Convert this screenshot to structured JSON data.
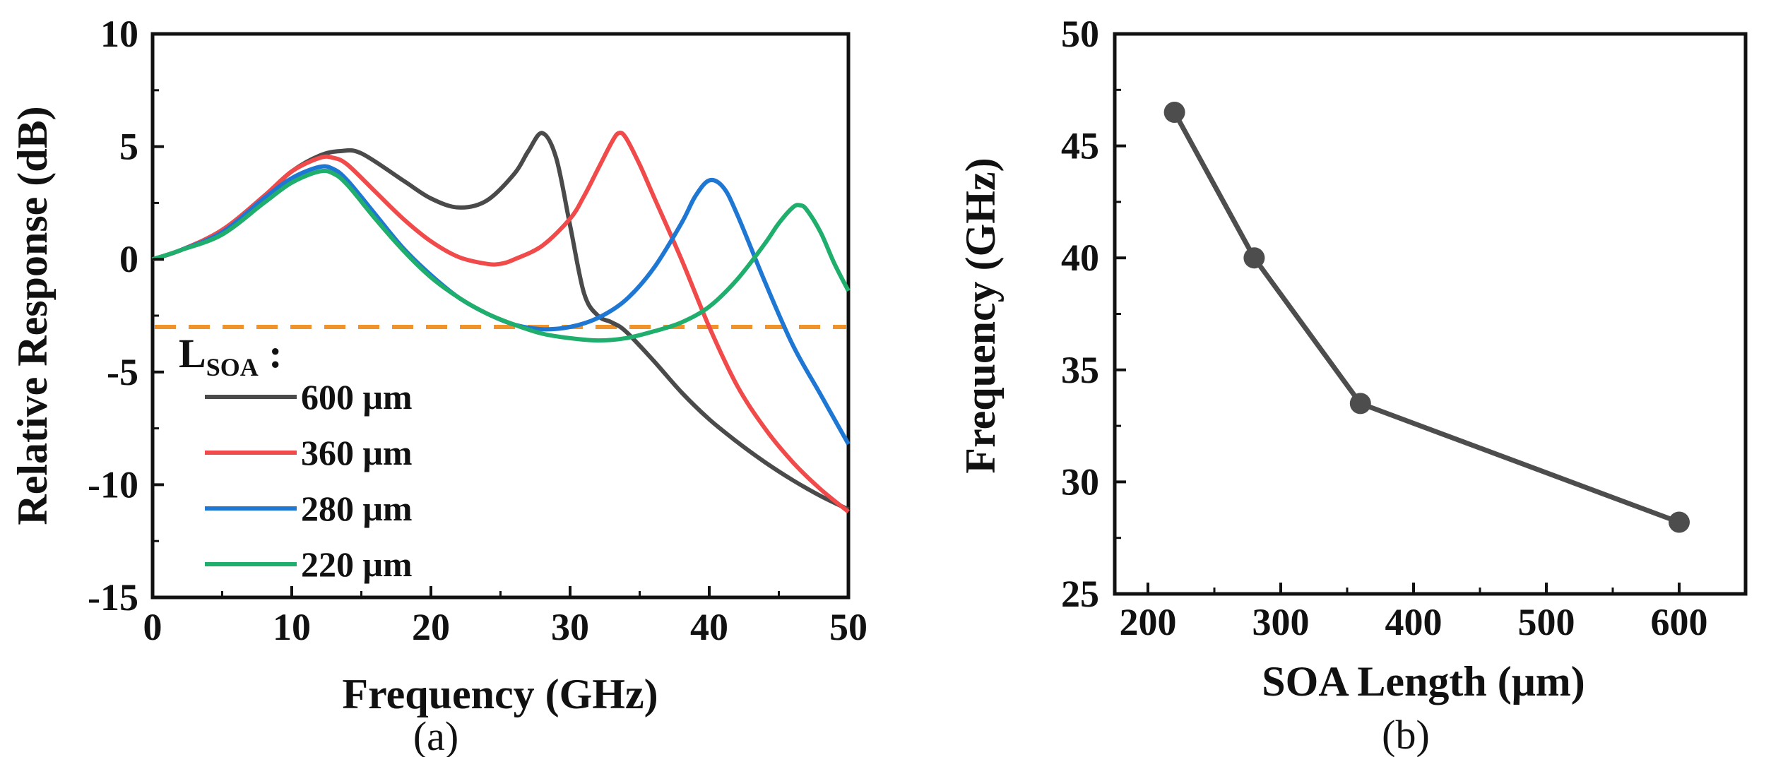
{
  "chart_data": [
    {
      "type": "line",
      "panel_label": "(a)",
      "xlabel": "Frequency (GHz)",
      "ylabel": "Relative Response (dB)",
      "xlim": [
        0,
        50
      ],
      "ylim": [
        -15,
        10
      ],
      "xticks": [
        0,
        10,
        20,
        30,
        40,
        50
      ],
      "yticks": [
        -15,
        -10,
        -5,
        0,
        5,
        10
      ],
      "legend_title_main": "L",
      "legend_title_sub": "SOA",
      "legend_title_suffix": " :",
      "reference_line": {
        "y": -3,
        "color": "#f0932b",
        "style": "dashed"
      },
      "series": [
        {
          "name": "600 μm",
          "color": "#4a4a4a",
          "x": [
            0,
            2,
            5,
            8,
            10,
            12,
            13.5,
            15,
            18,
            20,
            22,
            24,
            26,
            27,
            28,
            29,
            30,
            31,
            32,
            33,
            34,
            36,
            38,
            40,
            42,
            44,
            46,
            48,
            50
          ],
          "y": [
            0,
            0.4,
            1.3,
            2.8,
            3.9,
            4.6,
            4.8,
            4.7,
            3.5,
            2.7,
            2.3,
            2.6,
            3.8,
            4.8,
            5.6,
            4.5,
            1.5,
            -1.5,
            -2.5,
            -2.8,
            -3.2,
            -4.5,
            -5.9,
            -7.1,
            -8.1,
            -9.0,
            -9.8,
            -10.5,
            -11.1
          ]
        },
        {
          "name": "360 μm",
          "color": "#f04a4a",
          "x": [
            0,
            2,
            5,
            8,
            10,
            12,
            13,
            14,
            16,
            18,
            20,
            22,
            24,
            25,
            26,
            28,
            30,
            31,
            32,
            33,
            33.5,
            34,
            35,
            36,
            38,
            40,
            42,
            44,
            46,
            48,
            50
          ],
          "y": [
            0,
            0.4,
            1.3,
            2.8,
            3.9,
            4.5,
            4.5,
            4.2,
            3.0,
            1.8,
            0.8,
            0.1,
            -0.2,
            -0.2,
            0,
            0.6,
            1.8,
            2.8,
            4.0,
            5.2,
            5.6,
            5.4,
            4.2,
            2.8,
            0,
            -3.0,
            -5.6,
            -7.5,
            -9.0,
            -10.2,
            -11.2
          ]
        },
        {
          "name": "280 μm",
          "color": "#1f77d4",
          "x": [
            0,
            2,
            5,
            8,
            10,
            12,
            13,
            14,
            16,
            18,
            20,
            22,
            24,
            26,
            28,
            30,
            32,
            34,
            36,
            38,
            39,
            40,
            41,
            42,
            44,
            46,
            48,
            50
          ],
          "y": [
            0,
            0.4,
            1.2,
            2.7,
            3.6,
            4.1,
            4.0,
            3.5,
            2.0,
            0.5,
            -0.7,
            -1.7,
            -2.4,
            -2.9,
            -3.1,
            -3.0,
            -2.6,
            -1.8,
            -0.4,
            1.6,
            2.8,
            3.5,
            3.2,
            2.0,
            -1.0,
            -3.8,
            -6.0,
            -8.2
          ]
        },
        {
          "name": "220 μm",
          "color": "#1fae6b",
          "x": [
            0,
            2,
            5,
            8,
            10,
            12,
            13,
            14,
            16,
            18,
            20,
            22,
            24,
            26,
            28,
            30,
            32,
            34,
            36,
            38,
            40,
            42,
            44,
            45,
            46,
            46.5,
            47,
            48,
            49,
            50
          ],
          "y": [
            0,
            0.4,
            1.1,
            2.5,
            3.4,
            3.9,
            3.8,
            3.3,
            1.8,
            0.4,
            -0.8,
            -1.7,
            -2.4,
            -2.9,
            -3.3,
            -3.5,
            -3.6,
            -3.5,
            -3.2,
            -2.8,
            -2.1,
            -0.9,
            0.7,
            1.6,
            2.3,
            2.4,
            2.2,
            1.2,
            -0.2,
            -1.4
          ]
        }
      ]
    },
    {
      "type": "line",
      "panel_label": "(b)",
      "xlabel": "SOA Length (μm)",
      "ylabel": "Frequency (GHz)",
      "xlim": [
        175,
        650
      ],
      "ylim": [
        25,
        50
      ],
      "xticks": [
        200,
        300,
        400,
        500,
        600
      ],
      "yticks": [
        25,
        30,
        35,
        40,
        45,
        50
      ],
      "color": "#4d4d4d",
      "x": [
        220,
        280,
        360,
        600
      ],
      "y": [
        46.5,
        40,
        33.5,
        28.2
      ]
    }
  ]
}
